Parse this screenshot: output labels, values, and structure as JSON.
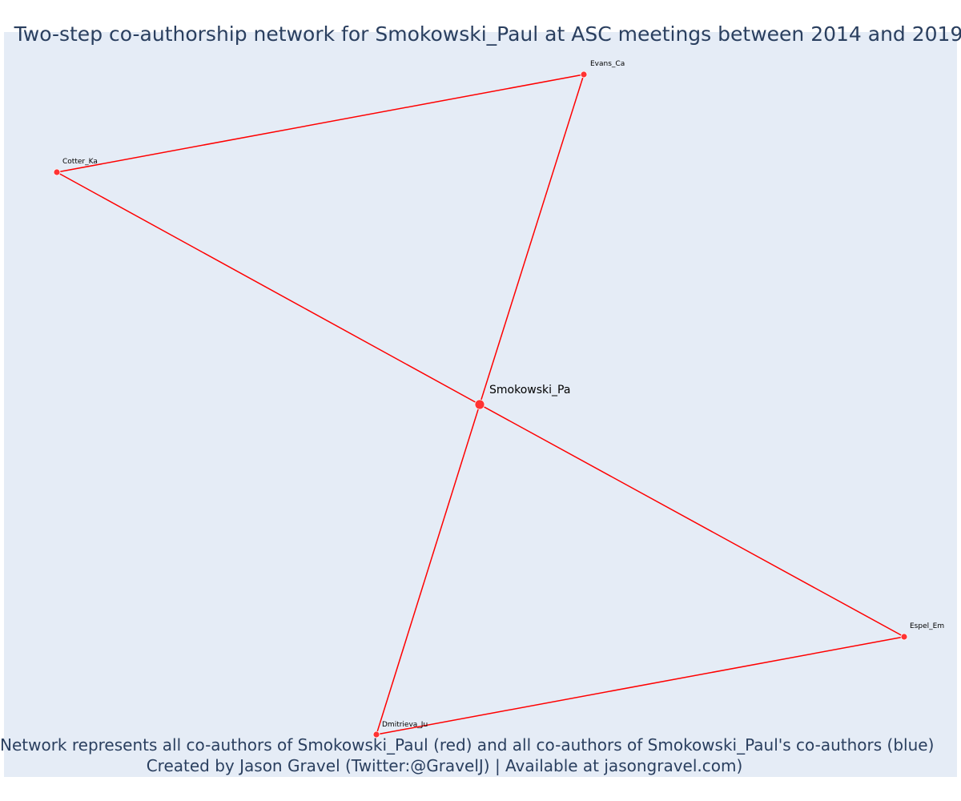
{
  "title": "Two-step co-authorship network for Smokowski_Paul at ASC meetings between 2014 and 2019",
  "footer": {
    "line1": "Network represents all co-authors of Smokowski_Paul (red) and all co-authors of Smokowski_Paul's co-authors (blue)",
    "line2": "Created by Jason Gravel (Twitter:@GravelJ) | Available at jasongravel.com)"
  },
  "colors": {
    "background": "#e5ecf6",
    "edge": "#ff0000",
    "node": "#ff3333",
    "title_text": "#2a3f5f"
  },
  "chart_data": {
    "type": "network",
    "title": "Two-step co-authorship network for Smokowski_Paul at ASC meetings between 2014 and 2019",
    "nodes": [
      {
        "id": "smokowski",
        "label": "Smokowski_Pa",
        "group": "focal"
      },
      {
        "id": "evans",
        "label": "Evans_Ca",
        "group": "coauthor"
      },
      {
        "id": "cotter",
        "label": "Cotter_Ka",
        "group": "coauthor"
      },
      {
        "id": "espel",
        "label": "Espel_Em",
        "group": "coauthor"
      },
      {
        "id": "dmitrieva",
        "label": "Dmitrieva_Ju",
        "group": "coauthor"
      }
    ],
    "edges": [
      {
        "source": "evans",
        "target": "cotter"
      },
      {
        "source": "evans",
        "target": "smokowski"
      },
      {
        "source": "cotter",
        "target": "smokowski"
      },
      {
        "source": "smokowski",
        "target": "espel"
      },
      {
        "source": "smokowski",
        "target": "dmitrieva"
      },
      {
        "source": "espel",
        "target": "dmitrieva"
      }
    ]
  }
}
